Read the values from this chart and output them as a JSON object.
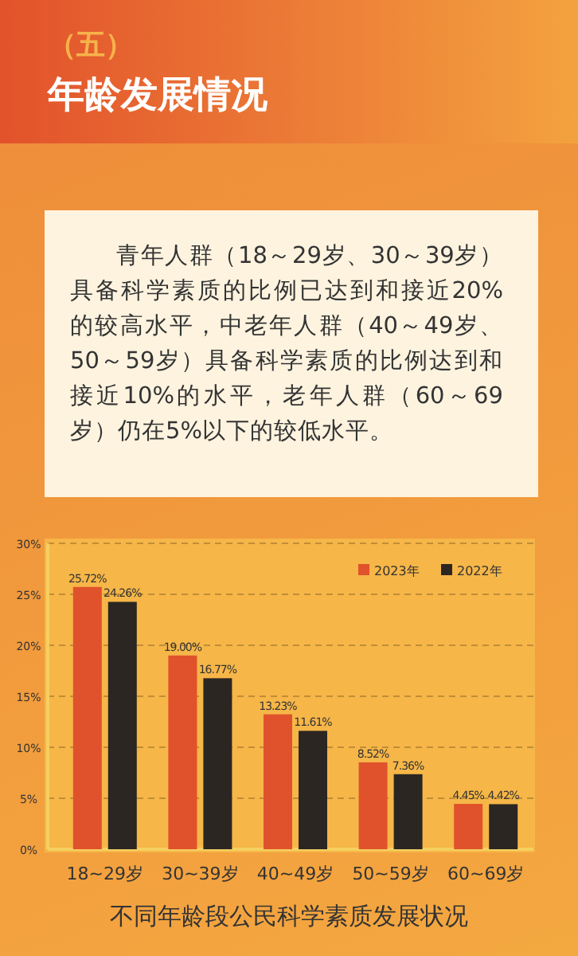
{
  "chart_data": {
    "type": "bar",
    "title": "（五）",
    "subtitle": "年龄发展情况",
    "annotations": [
      "青年人群（18～29岁、30～39岁）具备科学素质的比例已达到和接近20%的较高水平，中老年人群（40～49岁、50～59岁）具备科学素质的比例达到和接近10%的水平，老年人群（60～69岁）仍在5%以下的较低水平。",
      "不同年龄段公民科学素质发展状况"
    ],
    "categories": [
      "18~29岁",
      "30~39岁",
      "40~49岁",
      "50~59岁",
      "60~69岁"
    ],
    "series": [
      {
        "name": "2023年",
        "color": "#e0522b",
        "values": [
          25.72,
          19.0,
          13.23,
          8.52,
          4.45
        ],
        "value_labels": [
          "25.72%",
          "19.00%",
          "13.23%",
          "8.52%",
          "4.45%"
        ]
      },
      {
        "name": "2022年",
        "color": "#2b2622",
        "values": [
          24.26,
          16.77,
          11.61,
          7.36,
          4.42
        ],
        "value_labels": [
          "24.26%",
          "16.77%",
          "11.61%",
          "7.36%",
          "4.42%"
        ]
      }
    ],
    "ylim": [
      0,
      30
    ],
    "yticks": [
      {
        "value": 0,
        "label": "0%"
      },
      {
        "value": 5,
        "label": "5%"
      },
      {
        "value": 10,
        "label": "10%"
      },
      {
        "value": 15,
        "label": "15%"
      },
      {
        "value": 20,
        "label": "20%"
      },
      {
        "value": 25,
        "label": "25%"
      },
      {
        "value": 30,
        "label": "30%"
      }
    ],
    "grid": "y",
    "legend": "top right"
  }
}
